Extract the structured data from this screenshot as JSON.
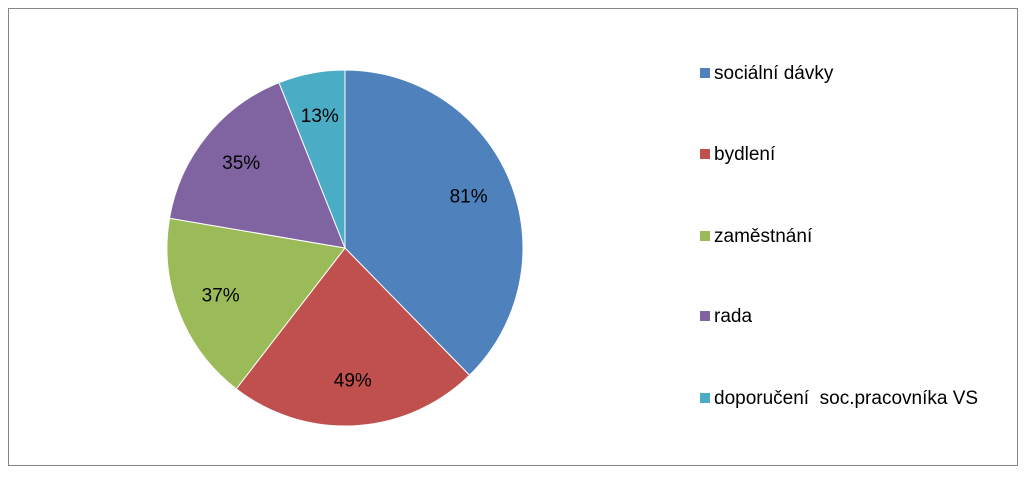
{
  "chart_data": {
    "type": "pie",
    "categories": [
      "sociální dávky",
      "bydlení",
      "zaměstnání",
      "rada",
      "doporučení  soc.pracovníka VS"
    ],
    "values": [
      81,
      49,
      37,
      35,
      13
    ],
    "value_labels": [
      "81%",
      "49%",
      "37%",
      "35%",
      "13%"
    ],
    "colors": [
      "#4f81bd",
      "#c0504d",
      "#9bbb59",
      "#8064a2",
      "#4bacc6"
    ],
    "legend": "right"
  }
}
